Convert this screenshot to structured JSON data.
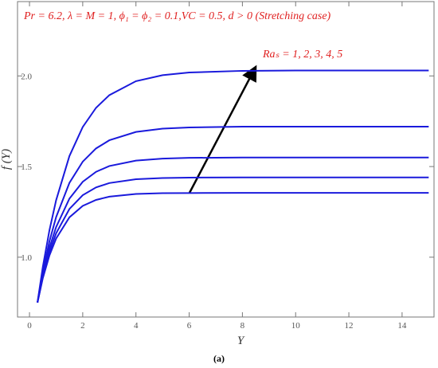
{
  "chart_data": {
    "type": "line",
    "annotations": [
      "Pr = 6.2, λ = M = 1, ϕ₁ = ϕ₂ = 0.1,VC = 0.5, d > 0 (Stretching case)",
      "Raₛ = 1, 2, 3, 4, 5"
    ],
    "xlabel": "Y",
    "ylabel": "f (Y)",
    "caption": "(a)",
    "x": [
      0.3,
      0.5,
      0.75,
      1,
      1.5,
      2,
      2.5,
      3,
      4,
      5,
      6,
      8,
      10,
      12,
      15
    ],
    "series": [
      {
        "color": "#1a1adc",
        "values": [
          0.75,
          0.946,
          1.149,
          1.314,
          1.558,
          1.718,
          1.824,
          1.894,
          1.971,
          2.004,
          2.019,
          2.028,
          2.03,
          2.03,
          2.03
        ]
      },
      {
        "color": "#1a1adc",
        "values": [
          0.75,
          0.918,
          1.088,
          1.221,
          1.41,
          1.527,
          1.6,
          1.645,
          1.691,
          1.709,
          1.716,
          1.72,
          1.72,
          1.72,
          1.72
        ]
      },
      {
        "color": "#1a1adc",
        "values": [
          0.75,
          0.899,
          1.052,
          1.166,
          1.323,
          1.416,
          1.471,
          1.503,
          1.533,
          1.544,
          1.548,
          1.55,
          1.55,
          1.55,
          1.55
        ]
      },
      {
        "color": "#1a1adc",
        "values": [
          0.75,
          0.891,
          1.029,
          1.132,
          1.266,
          1.342,
          1.385,
          1.409,
          1.43,
          1.437,
          1.439,
          1.44,
          1.44,
          1.44,
          1.44
        ]
      },
      {
        "color": "#1a1adc",
        "values": [
          0.75,
          0.884,
          1.01,
          1.103,
          1.22,
          1.283,
          1.316,
          1.334,
          1.349,
          1.353,
          1.354,
          1.355,
          1.355,
          1.355,
          1.355
        ]
      }
    ],
    "xlim": [
      -0.45,
      15.2
    ],
    "ylim": [
      0.67,
      2.41
    ],
    "xticks": [
      0,
      2,
      4,
      6,
      8,
      10,
      12,
      14
    ],
    "yticks": [
      {
        "value": 1,
        "label": "1.0"
      },
      {
        "value": 1.5,
        "label": "1.5"
      },
      {
        "value": 2,
        "label": "2.0"
      }
    ]
  }
}
